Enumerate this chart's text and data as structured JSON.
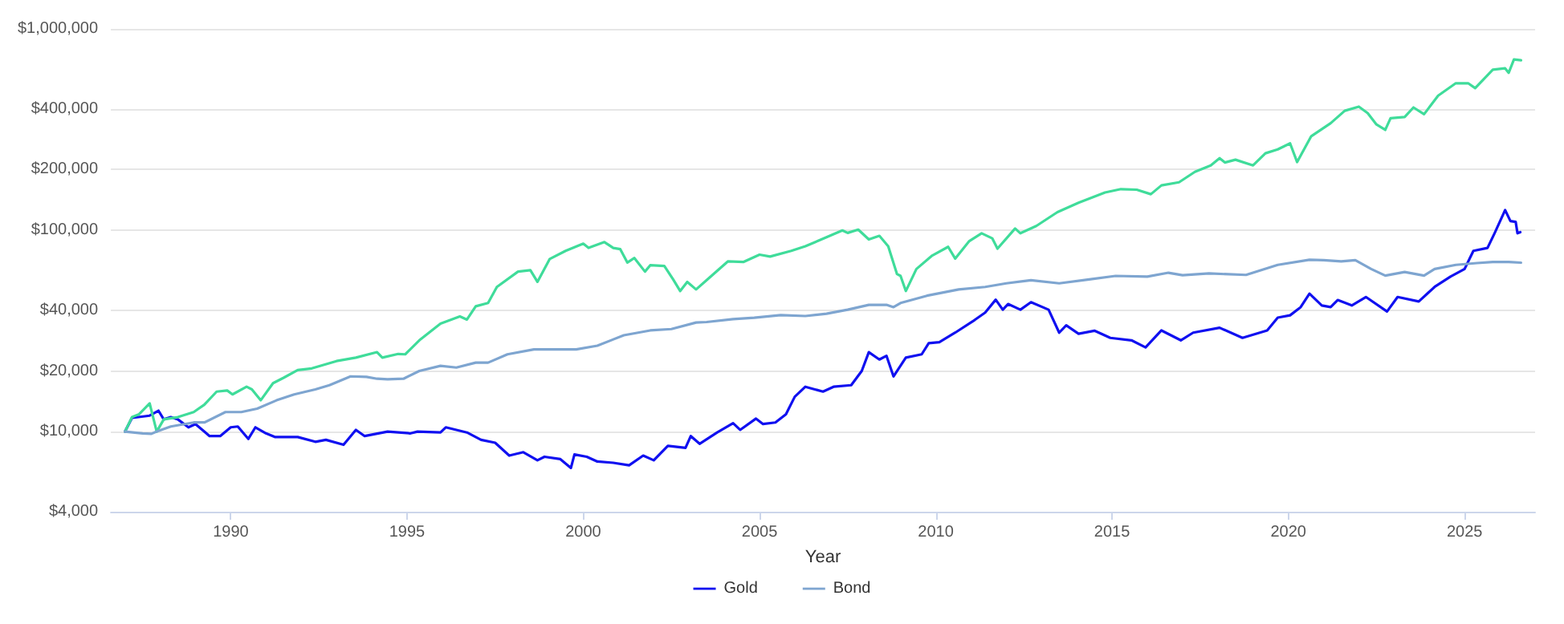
{
  "chart_data": {
    "type": "line",
    "xlabel": "Year",
    "xlim": [
      1986.6,
      2027.0
    ],
    "xticks": [
      1990,
      1995,
      2000,
      2005,
      2010,
      2015,
      2020,
      2025
    ],
    "ylim": [
      4000,
      1000000
    ],
    "log": "y",
    "yticks": [
      {
        "value": 4000,
        "label": "$4,000"
      },
      {
        "value": 10000,
        "label": "$10,000"
      },
      {
        "value": 20000,
        "label": "$20,000"
      },
      {
        "value": 40000,
        "label": "$40,000"
      },
      {
        "value": 100000,
        "label": "$100,000"
      },
      {
        "value": 200000,
        "label": "$200,000"
      },
      {
        "value": 400000,
        "label": "$400,000"
      },
      {
        "value": 1000000,
        "label": "$1,000,000"
      }
    ],
    "grid": "y",
    "legend": "bottom",
    "marker": "none",
    "line_style": "solid",
    "series": [
      {
        "name": "Gold",
        "color": "#1010f0",
        "x": [
          1987.0,
          1987.2,
          1987.7,
          1987.95,
          1988.1,
          1988.3,
          1988.5,
          1988.8,
          1989.0,
          1989.4,
          1989.7,
          1990.0,
          1990.2,
          1990.5,
          1990.7,
          1991.0,
          1991.25,
          1991.9,
          1992.4,
          1992.7,
          1993.2,
          1993.55,
          1993.8,
          1994.45,
          1995.1,
          1995.3,
          1995.95,
          1996.1,
          1996.7,
          1997.1,
          1997.5,
          1997.9,
          1998.3,
          1998.7,
          1998.9,
          1999.35,
          1999.65,
          1999.75,
          2000.1,
          2000.4,
          2000.85,
          2001.3,
          2001.7,
          2002.0,
          2002.4,
          2002.9,
          2003.05,
          2003.3,
          2003.8,
          2004.25,
          2004.45,
          2004.9,
          2005.1,
          2005.45,
          2005.75,
          2006.0,
          2006.3,
          2006.8,
          2007.1,
          2007.6,
          2007.9,
          2008.1,
          2008.4,
          2008.6,
          2008.8,
          2009.15,
          2009.6,
          2009.8,
          2010.1,
          2010.55,
          2011.1,
          2011.4,
          2011.7,
          2011.9,
          2012.05,
          2012.4,
          2012.7,
          2013.2,
          2013.5,
          2013.7,
          2014.05,
          2014.5,
          2014.95,
          2015.55,
          2015.95,
          2016.4,
          2016.95,
          2017.3,
          2018.05,
          2018.7,
          2019.4,
          2019.7,
          2020.05,
          2020.35,
          2020.6,
          2020.95,
          2021.2,
          2021.4,
          2021.8,
          2022.2,
          2022.8,
          2023.1,
          2023.7,
          2024.15,
          2024.6,
          2025.0,
          2025.25,
          2025.65,
          2025.85,
          2026.15,
          2026.3,
          2026.45,
          2026.5,
          2026.58
        ],
        "values": [
          10000,
          11700,
          12000,
          12700,
          11500,
          11800,
          11500,
          10500,
          10900,
          9500,
          9500,
          10500,
          10600,
          9200,
          10500,
          9800,
          9400,
          9400,
          8900,
          9100,
          8600,
          10200,
          9500,
          10000,
          9800,
          10000,
          9900,
          10500,
          9900,
          9100,
          8800,
          7600,
          7900,
          7200,
          7500,
          7300,
          6600,
          7700,
          7500,
          7100,
          7000,
          6800,
          7600,
          7200,
          8500,
          8300,
          9500,
          8700,
          9900,
          11000,
          10200,
          11600,
          10900,
          11100,
          12200,
          14900,
          16700,
          15800,
          16700,
          17000,
          20000,
          24800,
          22800,
          23800,
          18800,
          23300,
          24200,
          27500,
          27800,
          31000,
          35800,
          39000,
          45200,
          40300,
          43000,
          40300,
          43900,
          40300,
          31000,
          33700,
          30600,
          31700,
          29200,
          28400,
          26200,
          31800,
          28400,
          31000,
          32800,
          29200,
          31800,
          36800,
          37800,
          41500,
          48400,
          42300,
          41500,
          45000,
          42300,
          46600,
          39500,
          46600,
          44300,
          52300,
          58800,
          64200,
          79000,
          81700,
          96600,
          126000,
          111000,
          110000,
          96600,
          97800
        ]
      },
      {
        "color": "#3fdc9a",
        "x": [
          1987.0,
          1987.2,
          1987.4,
          1987.7,
          1987.9,
          1988.1,
          1988.5,
          1988.95,
          1989.25,
          1989.6,
          1989.9,
          1990.05,
          1990.45,
          1990.6,
          1990.85,
          1991.2,
          1991.5,
          1991.9,
          1992.3,
          1993.0,
          1993.55,
          1994.15,
          1994.3,
          1994.75,
          1994.95,
          1995.35,
          1995.95,
          1996.5,
          1996.7,
          1996.95,
          1997.3,
          1997.55,
          1998.15,
          1998.5,
          1998.7,
          1999.05,
          1999.5,
          2000.0,
          2000.15,
          2000.6,
          2000.85,
          2001.05,
          2001.25,
          2001.45,
          2001.75,
          2001.9,
          2002.3,
          2002.55,
          2002.75,
          2002.95,
          2003.2,
          2003.5,
          2004.1,
          2004.55,
          2005.0,
          2005.3,
          2005.9,
          2006.3,
          2006.9,
          2007.35,
          2007.5,
          2007.8,
          2008.1,
          2008.4,
          2008.65,
          2008.9,
          2009.0,
          2009.15,
          2009.45,
          2009.9,
          2010.35,
          2010.55,
          2010.95,
          2011.3,
          2011.6,
          2011.75,
          2012.25,
          2012.4,
          2012.85,
          2013.45,
          2014.05,
          2014.8,
          2015.25,
          2015.7,
          2016.1,
          2016.4,
          2016.9,
          2017.35,
          2017.8,
          2018.05,
          2018.2,
          2018.5,
          2019.0,
          2019.35,
          2019.7,
          2020.05,
          2020.25,
          2020.65,
          2021.2,
          2021.6,
          2022.0,
          2022.25,
          2022.5,
          2022.75,
          2022.9,
          2023.3,
          2023.55,
          2023.85,
          2024.25,
          2024.75,
          2025.1,
          2025.3,
          2025.8,
          2026.15,
          2026.25,
          2026.4,
          2026.6
        ],
        "values": [
          10000,
          11800,
          12200,
          13800,
          10000,
          11500,
          11800,
          12500,
          13600,
          15800,
          16000,
          15300,
          16700,
          16200,
          14300,
          17400,
          18500,
          20200,
          20600,
          22400,
          23300,
          24800,
          23300,
          24300,
          24200,
          28400,
          34400,
          37300,
          36000,
          41900,
          43500,
          52300,
          62300,
          63300,
          55400,
          72000,
          79000,
          85800,
          81700,
          87300,
          81700,
          80500,
          69100,
          72800,
          62300,
          67000,
          66500,
          57000,
          49900,
          55400,
          50800,
          56500,
          70000,
          69600,
          75600,
          74000,
          79000,
          83300,
          92300,
          99800,
          97000,
          100700,
          90000,
          93800,
          83300,
          60600,
          59300,
          49900,
          64200,
          74900,
          82700,
          72300,
          88300,
          96600,
          91200,
          81000,
          102000,
          96600,
          105000,
          123000,
          137000,
          154000,
          160000,
          159000,
          151000,
          167000,
          173000,
          195000,
          210000,
          228000,
          217000,
          224000,
          210000,
          241000,
          252000,
          270000,
          218000,
          293000,
          340000,
          392000,
          411000,
          382000,
          335000,
          315000,
          360000,
          365000,
          407000,
          377000,
          466000,
          537000,
          537000,
          508000,
          627000,
          637000,
          605000,
          705000,
          698000
        ]
      },
      {
        "name": "Bond",
        "color": "#7ea5d0",
        "x": [
          1987.0,
          1987.5,
          1987.75,
          1987.9,
          1988.3,
          1988.95,
          1989.25,
          1989.85,
          1990.3,
          1990.75,
          1991.3,
          1991.8,
          1992.4,
          1992.8,
          1993.4,
          1993.85,
          1994.15,
          1994.45,
          1994.9,
          1995.35,
          1995.95,
          1996.4,
          1996.95,
          1997.3,
          1997.85,
          1998.6,
          1999.35,
          1999.8,
          2000.4,
          2001.15,
          2001.9,
          2002.5,
          2003.2,
          2003.5,
          2004.25,
          2004.85,
          2005.6,
          2006.3,
          2006.9,
          2007.5,
          2008.1,
          2008.6,
          2008.8,
          2009.0,
          2009.75,
          2010.65,
          2011.4,
          2012.0,
          2012.7,
          2013.5,
          2014.35,
          2015.1,
          2016.0,
          2016.6,
          2017.0,
          2017.75,
          2018.8,
          2019.7,
          2020.6,
          2021.0,
          2021.5,
          2021.9,
          2022.35,
          2022.75,
          2023.3,
          2023.85,
          2024.15,
          2024.75,
          2025.35,
          2025.8,
          2026.25,
          2026.6
        ],
        "values": [
          10000,
          9800,
          9750,
          10000,
          10600,
          11100,
          11100,
          12500,
          12500,
          13000,
          14300,
          15300,
          16200,
          17000,
          18800,
          18700,
          18300,
          18200,
          18300,
          20000,
          21200,
          20800,
          22000,
          22000,
          24200,
          25600,
          25600,
          25600,
          26700,
          30100,
          31800,
          32300,
          34800,
          35000,
          36200,
          36800,
          37900,
          37500,
          38500,
          40300,
          42600,
          42600,
          41500,
          43500,
          47300,
          50800,
          52300,
          54500,
          56500,
          54500,
          57000,
          59300,
          58800,
          61500,
          59800,
          61000,
          60000,
          67300,
          71300,
          71000,
          70000,
          71000,
          64200,
          59500,
          62000,
          59500,
          64200,
          67300,
          68700,
          69600,
          69600,
          69000
        ]
      }
    ]
  }
}
